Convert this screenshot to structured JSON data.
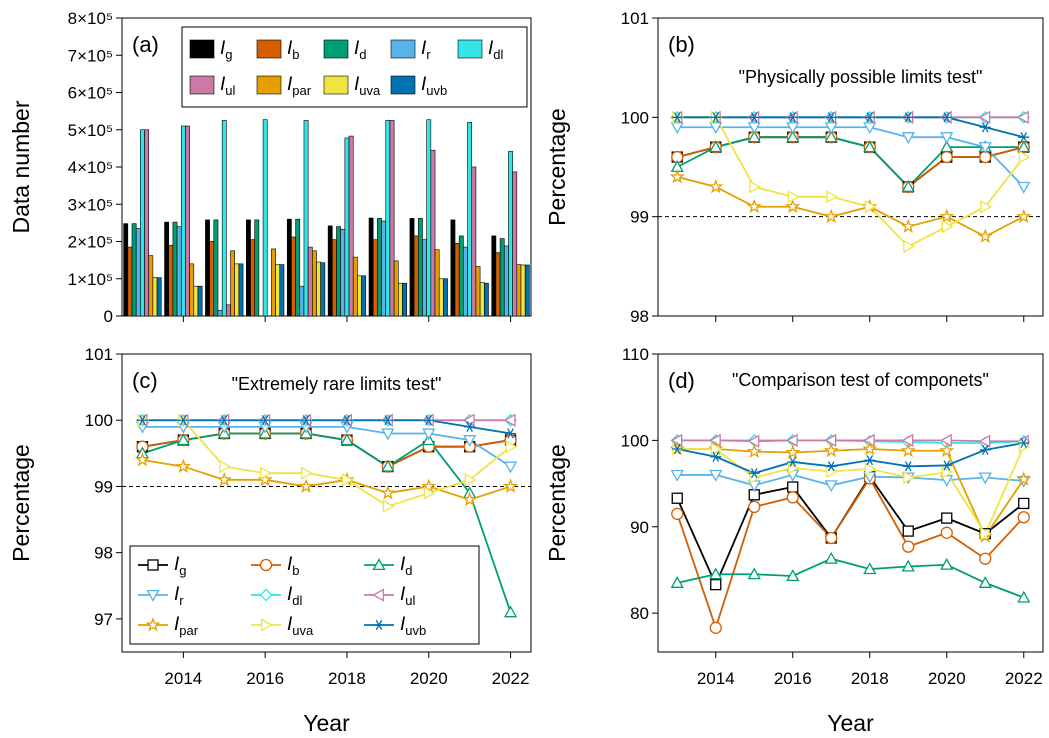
{
  "chart_data": [
    {
      "type": "bar",
      "label": "(a)",
      "ylabel": "Data number",
      "x": [
        2013,
        2014,
        2015,
        2016,
        2017,
        2018,
        2019,
        2020,
        2021,
        2022
      ],
      "xlim": [
        2012.5,
        2022.5
      ],
      "xticks": [
        2014,
        2016,
        2018,
        2020,
        2022
      ],
      "show_xtick_labels": false,
      "ylim": [
        0,
        800000
      ],
      "yticks": [
        0,
        {
          "value": 100000,
          "label": "1×10⁵"
        },
        {
          "value": 200000,
          "label": "2×10⁵"
        },
        {
          "value": 300000,
          "label": "3×10⁵"
        },
        {
          "value": 400000,
          "label": "4×10⁵"
        },
        {
          "value": 500000,
          "label": "5×10⁵"
        },
        {
          "value": 600000,
          "label": "6×10⁵"
        },
        {
          "value": 700000,
          "label": "7×10⁵"
        },
        {
          "value": 800000,
          "label": "8×10⁵"
        }
      ],
      "legend": "upper right",
      "legend_columns": 5,
      "series": [
        {
          "name": "Ig",
          "color": "#000000",
          "values": [
            248000,
            252000,
            258000,
            258000,
            260000,
            242000,
            263000,
            262000,
            258000,
            215000
          ]
        },
        {
          "name": "Ib",
          "color": "#d55e00",
          "values": [
            185000,
            190000,
            200000,
            205000,
            212000,
            205000,
            205000,
            215000,
            195000,
            170000
          ]
        },
        {
          "name": "Id",
          "color": "#009e73",
          "values": [
            248000,
            252000,
            258000,
            258000,
            260000,
            240000,
            262000,
            262000,
            215000,
            208000
          ]
        },
        {
          "name": "Ir",
          "color": "#56b4e9",
          "values": [
            235000,
            240000,
            15000,
            0,
            80000,
            233000,
            255000,
            205000,
            185000,
            188000
          ]
        },
        {
          "name": "Idl",
          "color": "#33e5e5",
          "values": [
            500000,
            510000,
            525000,
            527000,
            525000,
            478000,
            525000,
            527000,
            520000,
            442000
          ]
        },
        {
          "name": "Iul",
          "color": "#cc79a7",
          "values": [
            500000,
            510000,
            30000,
            0,
            185000,
            483000,
            525000,
            445000,
            400000,
            387000
          ]
        },
        {
          "name": "Ipar",
          "color": "#e69f00",
          "values": [
            162000,
            140000,
            175000,
            180000,
            175000,
            158000,
            148000,
            178000,
            133000,
            138000
          ]
        },
        {
          "name": "Iuva",
          "color": "#f0e442",
          "values": [
            103000,
            80000,
            140000,
            138000,
            145000,
            108000,
            88000,
            100000,
            90000,
            137000
          ]
        },
        {
          "name": "Iuvb",
          "color": "#0072b2",
          "values": [
            103000,
            80000,
            140000,
            138000,
            143000,
            108000,
            88000,
            100000,
            88000,
            137000
          ]
        }
      ]
    },
    {
      "type": "line",
      "label": "(b)",
      "title": "\"Physically possible limits test\"",
      "ylabel": "Percentage",
      "x": [
        2013,
        2014,
        2015,
        2016,
        2017,
        2018,
        2019,
        2020,
        2021,
        2022
      ],
      "xlim": [
        2012.5,
        2022.5
      ],
      "xticks": [
        2014,
        2016,
        2018,
        2020,
        2022
      ],
      "show_xtick_labels": false,
      "ylim": [
        98,
        101
      ],
      "yticks": [
        98,
        99,
        100,
        101
      ],
      "hline": 99,
      "series": [
        {
          "name": "Ig",
          "color": "#000000",
          "marker": "square",
          "values": [
            99.6,
            99.7,
            99.8,
            99.8,
            99.8,
            99.7,
            99.3,
            99.6,
            99.6,
            99.7
          ]
        },
        {
          "name": "Ib",
          "color": "#d55e00",
          "marker": "circle",
          "values": [
            99.6,
            99.7,
            99.8,
            99.8,
            99.8,
            99.7,
            99.3,
            99.6,
            99.6,
            99.7
          ]
        },
        {
          "name": "Id",
          "color": "#009e73",
          "marker": "triangle-up",
          "values": [
            99.5,
            99.7,
            99.8,
            99.8,
            99.8,
            99.7,
            99.3,
            99.7,
            99.7,
            99.7
          ]
        },
        {
          "name": "Ir",
          "color": "#56b4e9",
          "marker": "triangle-down",
          "values": [
            99.9,
            99.9,
            99.9,
            99.9,
            99.9,
            99.9,
            99.8,
            99.8,
            99.7,
            99.3
          ]
        },
        {
          "name": "Idl",
          "color": "#33e5e5",
          "marker": "diamond",
          "values": [
            100,
            100,
            100,
            100,
            100,
            100,
            100,
            100,
            100,
            100
          ]
        },
        {
          "name": "Iul",
          "color": "#cc79a7",
          "marker": "triangle-left",
          "values": [
            100,
            100,
            100,
            100,
            100,
            100,
            100,
            100,
            100,
            100
          ]
        },
        {
          "name": "Ipar",
          "color": "#e69f00",
          "marker": "star",
          "values": [
            99.4,
            99.3,
            99.1,
            99.1,
            99.0,
            99.1,
            98.9,
            99.0,
            98.8,
            99.0
          ]
        },
        {
          "name": "Iuva",
          "color": "#f0e442",
          "marker": "triangle-right",
          "values": [
            100,
            100,
            99.3,
            99.2,
            99.2,
            99.1,
            98.7,
            98.9,
            99.1,
            99.6
          ]
        },
        {
          "name": "Iuvb",
          "color": "#0072b2",
          "marker": "asterisk",
          "values": [
            100,
            100,
            100,
            100,
            100,
            100,
            100,
            100,
            99.9,
            99.8
          ]
        }
      ]
    },
    {
      "type": "line",
      "label": "(c)",
      "title": "\"Extremely rare limits test\"",
      "ylabel": "Percentage",
      "xlabel": "Year",
      "x": [
        2013,
        2014,
        2015,
        2016,
        2017,
        2018,
        2019,
        2020,
        2021,
        2022
      ],
      "xlim": [
        2012.5,
        2022.5
      ],
      "xticks": [
        2014,
        2016,
        2018,
        2020,
        2022
      ],
      "ylim": [
        96.5,
        101
      ],
      "yticks": [
        97,
        98,
        99,
        100,
        101
      ],
      "hline": 99,
      "legend": "lower left",
      "legend_columns": 3,
      "series": [
        {
          "name": "Ig",
          "color": "#000000",
          "marker": "square",
          "values": [
            99.6,
            99.7,
            99.8,
            99.8,
            99.8,
            99.7,
            99.3,
            99.6,
            99.6,
            99.7
          ]
        },
        {
          "name": "Ib",
          "color": "#d55e00",
          "marker": "circle",
          "values": [
            99.6,
            99.7,
            99.8,
            99.8,
            99.8,
            99.7,
            99.3,
            99.6,
            99.6,
            99.7
          ]
        },
        {
          "name": "Id",
          "color": "#009e73",
          "marker": "triangle-up",
          "values": [
            99.5,
            99.7,
            99.8,
            99.8,
            99.8,
            99.7,
            99.3,
            99.7,
            98.9,
            97.1
          ]
        },
        {
          "name": "Ir",
          "color": "#56b4e9",
          "marker": "triangle-down",
          "values": [
            99.9,
            99.9,
            99.9,
            99.9,
            99.9,
            99.9,
            99.8,
            99.8,
            99.7,
            99.3
          ]
        },
        {
          "name": "Idl",
          "color": "#33e5e5",
          "marker": "diamond",
          "values": [
            100,
            100,
            100,
            100,
            100,
            100,
            100,
            100,
            100,
            100
          ]
        },
        {
          "name": "Iul",
          "color": "#cc79a7",
          "marker": "triangle-left",
          "values": [
            100,
            100,
            100,
            100,
            100,
            100,
            100,
            100,
            100,
            100
          ]
        },
        {
          "name": "Ipar",
          "color": "#e69f00",
          "marker": "star",
          "values": [
            99.4,
            99.3,
            99.1,
            99.1,
            99.0,
            99.1,
            98.9,
            99.0,
            98.8,
            99.0
          ]
        },
        {
          "name": "Iuva",
          "color": "#f0e442",
          "marker": "triangle-right",
          "values": [
            100,
            100,
            99.3,
            99.2,
            99.2,
            99.1,
            98.7,
            98.9,
            99.1,
            99.6
          ]
        },
        {
          "name": "Iuvb",
          "color": "#0072b2",
          "marker": "asterisk",
          "values": [
            100,
            100,
            100,
            100,
            100,
            100,
            100,
            100,
            99.9,
            99.8
          ]
        }
      ]
    },
    {
      "type": "line",
      "label": "(d)",
      "title": "\"Comparison test of componets\"",
      "ylabel": "Percentage",
      "xlabel": "Year",
      "x": [
        2013,
        2014,
        2015,
        2016,
        2017,
        2018,
        2019,
        2020,
        2021,
        2022
      ],
      "xlim": [
        2012.5,
        2022.5
      ],
      "xticks": [
        2014,
        2016,
        2018,
        2020,
        2022
      ],
      "ylim": [
        75.5,
        110
      ],
      "yticks": [
        80,
        90,
        100,
        110
      ],
      "series": [
        {
          "name": "Ig",
          "color": "#000000",
          "marker": "square",
          "values": [
            93.3,
            83.3,
            93.7,
            94.6,
            88.7,
            95.8,
            89.5,
            91.0,
            89.2,
            92.7
          ]
        },
        {
          "name": "Ib",
          "color": "#d55e00",
          "marker": "circle",
          "values": [
            91.5,
            78.3,
            92.3,
            93.4,
            88.7,
            95.6,
            87.7,
            89.3,
            86.3,
            91.1
          ]
        },
        {
          "name": "Id",
          "color": "#009e73",
          "marker": "triangle-up",
          "values": [
            83.5,
            84.5,
            84.5,
            84.3,
            86.3,
            85.1,
            85.4,
            85.6,
            83.5,
            81.8
          ]
        },
        {
          "name": "Ir",
          "color": "#56b4e9",
          "marker": "triangle-down",
          "values": [
            96.0,
            96.0,
            94.8,
            96.0,
            94.8,
            95.8,
            95.7,
            95.4,
            95.7,
            95.3
          ]
        },
        {
          "name": "Idl",
          "color": "#33e5e5",
          "marker": "diamond",
          "values": [
            100.0,
            100.0,
            100.0,
            100.0,
            100.0,
            99.9,
            99.8,
            99.7,
            99.7,
            99.9
          ]
        },
        {
          "name": "Iul",
          "color": "#cc79a7",
          "marker": "triangle-left",
          "values": [
            100.0,
            100.0,
            99.9,
            100.0,
            100.0,
            100.0,
            100.0,
            100.0,
            99.9,
            99.9
          ]
        },
        {
          "name": "Ipar",
          "color": "#e69f00",
          "marker": "star",
          "values": [
            99.0,
            99.0,
            98.7,
            98.6,
            98.8,
            99.0,
            98.8,
            98.8,
            88.9,
            95.5
          ]
        },
        {
          "name": "Iuva",
          "color": "#f0e442",
          "marker": "triangle-right",
          "values": [
            99.0,
            99.0,
            95.7,
            96.8,
            96.4,
            96.7,
            95.7,
            96.3,
            89.2,
            99.3
          ]
        },
        {
          "name": "Iuvb",
          "color": "#0072b2",
          "marker": "asterisk",
          "values": [
            99.0,
            98.1,
            96.2,
            97.5,
            97.0,
            97.7,
            97.0,
            97.1,
            98.9,
            99.7
          ]
        }
      ]
    }
  ]
}
